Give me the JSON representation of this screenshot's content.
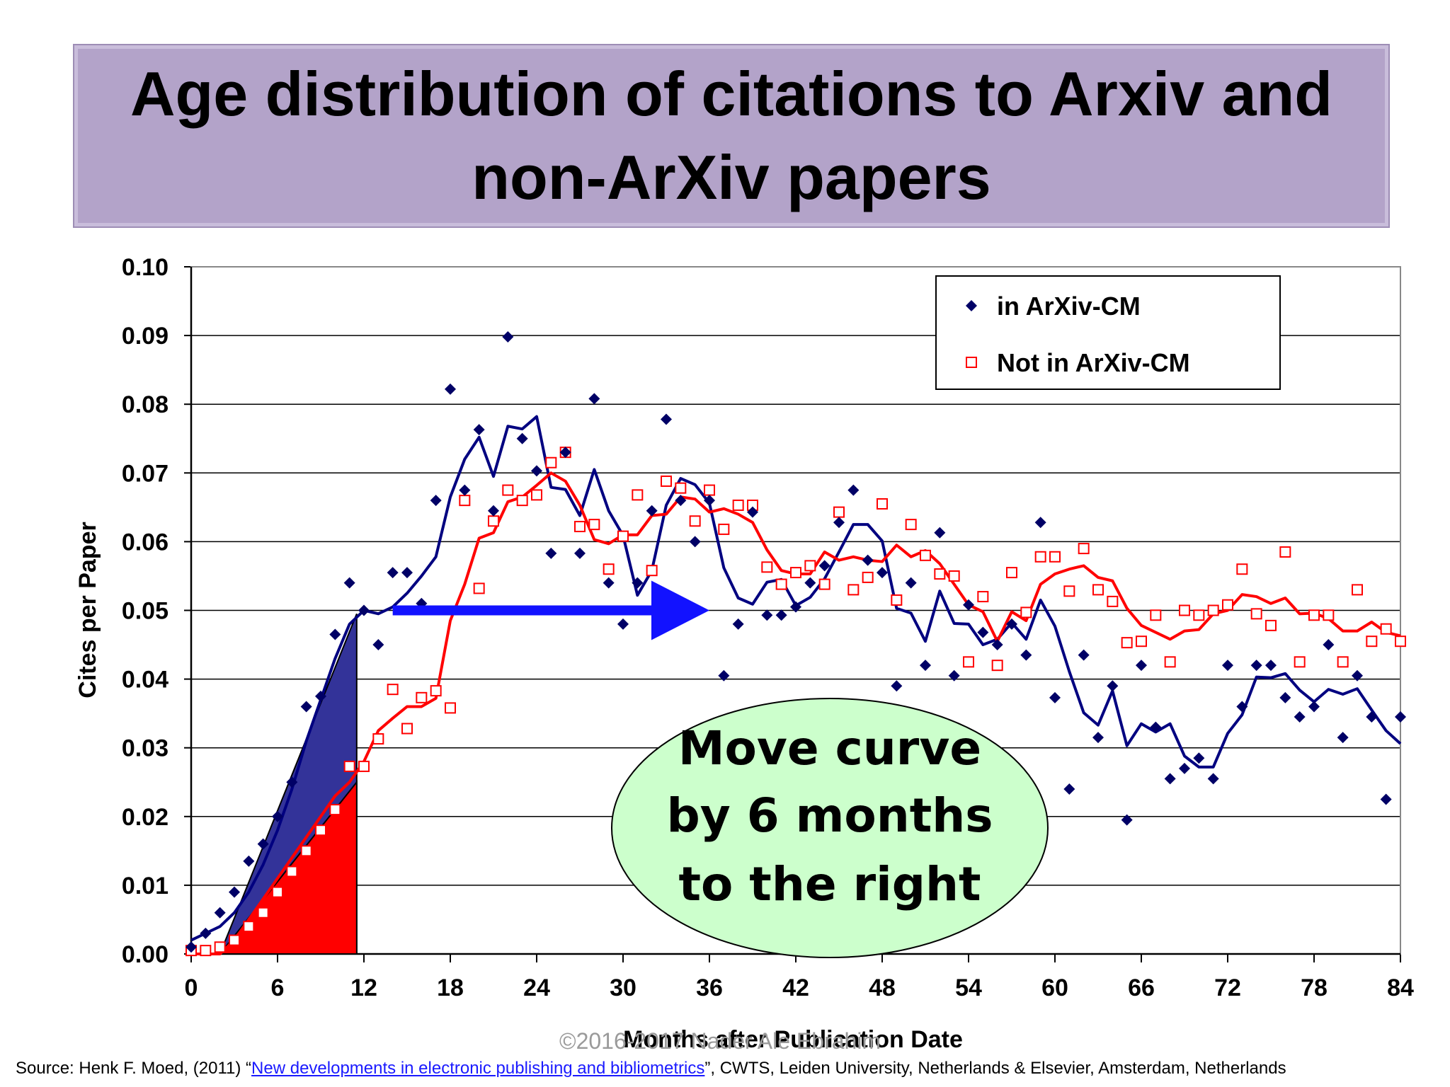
{
  "title": "Age distribution of citations to Arxiv and non-ArXiv papers",
  "watermark": "©2016-2017  Nader Ale Ebrahim",
  "source": {
    "prefix": "Source: Henk F. Moed, (2011) “",
    "link_text": "New developments in electronic publishing and bibliometrics",
    "suffix": "”, CWTS, Leiden University, Netherlands & Elsevier, Amsterdam, Netherlands"
  },
  "callout": {
    "lines": [
      "Move curve",
      "by 6 months",
      " to the right"
    ],
    "fill_color": "#ccffcc"
  },
  "annotation": {
    "arrow": {
      "from_x": 14,
      "to_x": 36,
      "y": 0.05,
      "color": "#1212ff"
    },
    "blue_triangle": [
      [
        2,
        0.0
      ],
      [
        11.5,
        0.0495
      ],
      [
        11.5,
        0.0
      ]
    ],
    "red_triangle": [
      [
        2,
        0.0
      ],
      [
        11.5,
        0.025
      ],
      [
        11.5,
        0.0
      ]
    ],
    "blue_fill": "#333399",
    "red_fill": "#ff0000"
  },
  "chart_data": {
    "type": "scatter",
    "xlabel": "Months after Publication Date",
    "ylabel": "Cites per Paper",
    "xlim": [
      0,
      84
    ],
    "ylim": [
      0,
      0.1
    ],
    "xticks": [
      "0",
      "6",
      "12",
      "18",
      "24",
      "30",
      "36",
      "42",
      "48",
      "54",
      "60",
      "66",
      "72",
      "78",
      "84"
    ],
    "yticks": [
      "0.00",
      "0.01",
      "0.02",
      "0.03",
      "0.04",
      "0.05",
      "0.06",
      "0.07",
      "0.08",
      "0.09",
      "0.10"
    ],
    "grid": true,
    "legend_position": "top-right",
    "series": [
      {
        "name": "in ArXiv-CM",
        "marker": "diamond",
        "color": "#000066",
        "line_color": "#000080",
        "x": [
          0,
          1,
          2,
          3,
          4,
          5,
          6,
          7,
          8,
          9,
          10,
          11,
          12,
          13,
          14,
          15,
          16,
          17,
          18,
          19,
          20,
          21,
          22,
          23,
          24,
          25,
          26,
          27,
          28,
          29,
          30,
          31,
          32,
          33,
          34,
          35,
          36,
          37,
          38,
          39,
          40,
          41,
          42,
          43,
          44,
          45,
          46,
          47,
          48,
          49,
          50,
          51,
          52,
          53,
          54,
          55,
          56,
          57,
          58,
          59,
          60,
          61,
          62,
          63,
          64,
          65,
          66,
          67,
          68,
          69,
          70,
          71,
          72,
          73,
          74,
          75,
          76,
          77,
          78,
          79,
          80,
          81,
          82,
          83,
          84
        ],
        "y": [
          0.001,
          0.003,
          0.006,
          0.009,
          0.0135,
          0.016,
          0.02,
          0.025,
          0.036,
          0.0375,
          0.0465,
          0.054,
          0.05,
          0.045,
          0.0555,
          0.0555,
          0.051,
          0.066,
          0.0822,
          0.0675,
          0.0763,
          0.0645,
          0.0898,
          0.075,
          0.0703,
          0.0583,
          0.073,
          0.0583,
          0.0808,
          0.054,
          0.048,
          0.054,
          0.0645,
          0.0778,
          0.066,
          0.06,
          0.066,
          0.0405,
          0.048,
          0.0643,
          0.0493,
          0.0493,
          0.0505,
          0.054,
          0.0565,
          0.0628,
          0.0675,
          0.0573,
          0.0555,
          0.039,
          0.054,
          0.042,
          0.0613,
          0.0405,
          0.0508,
          0.0468,
          0.045,
          0.048,
          0.0435,
          0.0628,
          0.0373,
          0.024,
          0.0435,
          0.0315,
          0.039,
          0.0195,
          0.042,
          0.033,
          0.0255,
          0.027,
          0.0285,
          0.0255,
          0.042,
          0.036,
          0.042,
          0.042,
          0.0373,
          0.0345,
          0.036,
          0.045,
          0.0315,
          0.0405,
          0.0345,
          0.0225,
          0.0345
        ],
        "moving_avg": [
          0.002,
          0.003,
          0.004,
          0.006,
          0.009,
          0.013,
          0.018,
          0.024,
          0.031,
          0.037,
          0.043,
          0.048,
          0.05,
          0.0495,
          0.0505,
          0.0525,
          0.055,
          0.0578,
          0.0665,
          0.072,
          0.0752,
          0.0695,
          0.0768,
          0.0764,
          0.0782,
          0.0679,
          0.0676,
          0.0638,
          0.0705,
          0.0645,
          0.0609,
          0.0522,
          0.0558,
          0.0653,
          0.0692,
          0.0683,
          0.0656,
          0.0562,
          0.0518,
          0.0509,
          0.0541,
          0.0545,
          0.0507,
          0.0519,
          0.0546,
          0.0585,
          0.0625,
          0.0625,
          0.0601,
          0.0503,
          0.0496,
          0.0455,
          0.0528,
          0.0481,
          0.048,
          0.045,
          0.0458,
          0.0482,
          0.0458,
          0.0515,
          0.0477,
          0.0411,
          0.0351,
          0.0333,
          0.0383,
          0.0303,
          0.0335,
          0.0323,
          0.0335,
          0.0288,
          0.0272,
          0.0272,
          0.0321,
          0.0348,
          0.0403,
          0.0402,
          0.0408,
          0.0384,
          0.0367,
          0.0385,
          0.0378,
          0.0386,
          0.0355,
          0.0325,
          0.0306
        ]
      },
      {
        "name": "Not in ArXiv-CM",
        "marker": "square",
        "color": "#ff0000",
        "line_color": "#ff0000",
        "x": [
          0,
          1,
          2,
          3,
          4,
          5,
          6,
          7,
          8,
          9,
          10,
          11,
          12,
          13,
          14,
          15,
          16,
          17,
          18,
          19,
          20,
          21,
          22,
          23,
          24,
          25,
          26,
          27,
          28,
          29,
          30,
          31,
          32,
          33,
          34,
          35,
          36,
          37,
          38,
          39,
          40,
          41,
          42,
          43,
          44,
          45,
          46,
          47,
          48,
          49,
          50,
          51,
          52,
          53,
          54,
          55,
          56,
          57,
          58,
          59,
          60,
          61,
          62,
          63,
          64,
          65,
          66,
          67,
          68,
          69,
          70,
          71,
          72,
          73,
          74,
          75,
          76,
          77,
          78,
          79,
          80,
          81,
          82,
          83,
          84
        ],
        "y": [
          0.0005,
          0.0005,
          0.001,
          0.002,
          0.004,
          0.006,
          0.009,
          0.012,
          0.015,
          0.018,
          0.021,
          0.0273,
          0.0273,
          0.0313,
          0.0385,
          0.0328,
          0.0373,
          0.0383,
          0.0358,
          0.066,
          0.0532,
          0.063,
          0.0675,
          0.066,
          0.0668,
          0.0715,
          0.073,
          0.0622,
          0.0625,
          0.056,
          0.0608,
          0.0668,
          0.0558,
          0.0688,
          0.0678,
          0.063,
          0.0675,
          0.0618,
          0.0653,
          0.0653,
          0.0563,
          0.0538,
          0.0555,
          0.0565,
          0.0538,
          0.0643,
          0.053,
          0.0548,
          0.0655,
          0.0515,
          0.0625,
          0.058,
          0.0553,
          0.055,
          0.0425,
          0.052,
          0.042,
          0.0555,
          0.0497,
          0.0578,
          0.0578,
          0.0528,
          0.059,
          0.053,
          0.0513,
          0.0453,
          0.0455,
          0.0493,
          0.0425,
          0.05,
          0.0493,
          0.05,
          0.0508,
          0.056,
          0.0495,
          0.0478,
          0.0585,
          0.0425,
          0.0493,
          0.0493,
          0.0425,
          0.053,
          0.0455,
          0.0473,
          0.0455
        ],
        "moving_avg": [
          0.0,
          0.0,
          0.0,
          0.002,
          0.005,
          0.008,
          0.011,
          0.014,
          0.017,
          0.02,
          0.023,
          0.025,
          0.028,
          0.0325,
          0.0343,
          0.036,
          0.036,
          0.0372,
          0.0485,
          0.0538,
          0.0605,
          0.0613,
          0.0658,
          0.0665,
          0.0682,
          0.07,
          0.0688,
          0.0653,
          0.0603,
          0.0597,
          0.061,
          0.061,
          0.0638,
          0.064,
          0.0665,
          0.0662,
          0.0643,
          0.0648,
          0.064,
          0.0628,
          0.0588,
          0.0558,
          0.0553,
          0.0553,
          0.0585,
          0.0573,
          0.0578,
          0.0573,
          0.0571,
          0.0595,
          0.0578,
          0.0587,
          0.0568,
          0.0538,
          0.0508,
          0.0498,
          0.0455,
          0.0498,
          0.0485,
          0.0538,
          0.0553,
          0.056,
          0.0565,
          0.0548,
          0.0543,
          0.0503,
          0.0478,
          0.0468,
          0.0458,
          0.047,
          0.0472,
          0.0495,
          0.05,
          0.0523,
          0.052,
          0.051,
          0.0518,
          0.0495,
          0.0496,
          0.0488,
          0.047,
          0.047,
          0.0483,
          0.0468,
          0.0463
        ]
      }
    ]
  }
}
